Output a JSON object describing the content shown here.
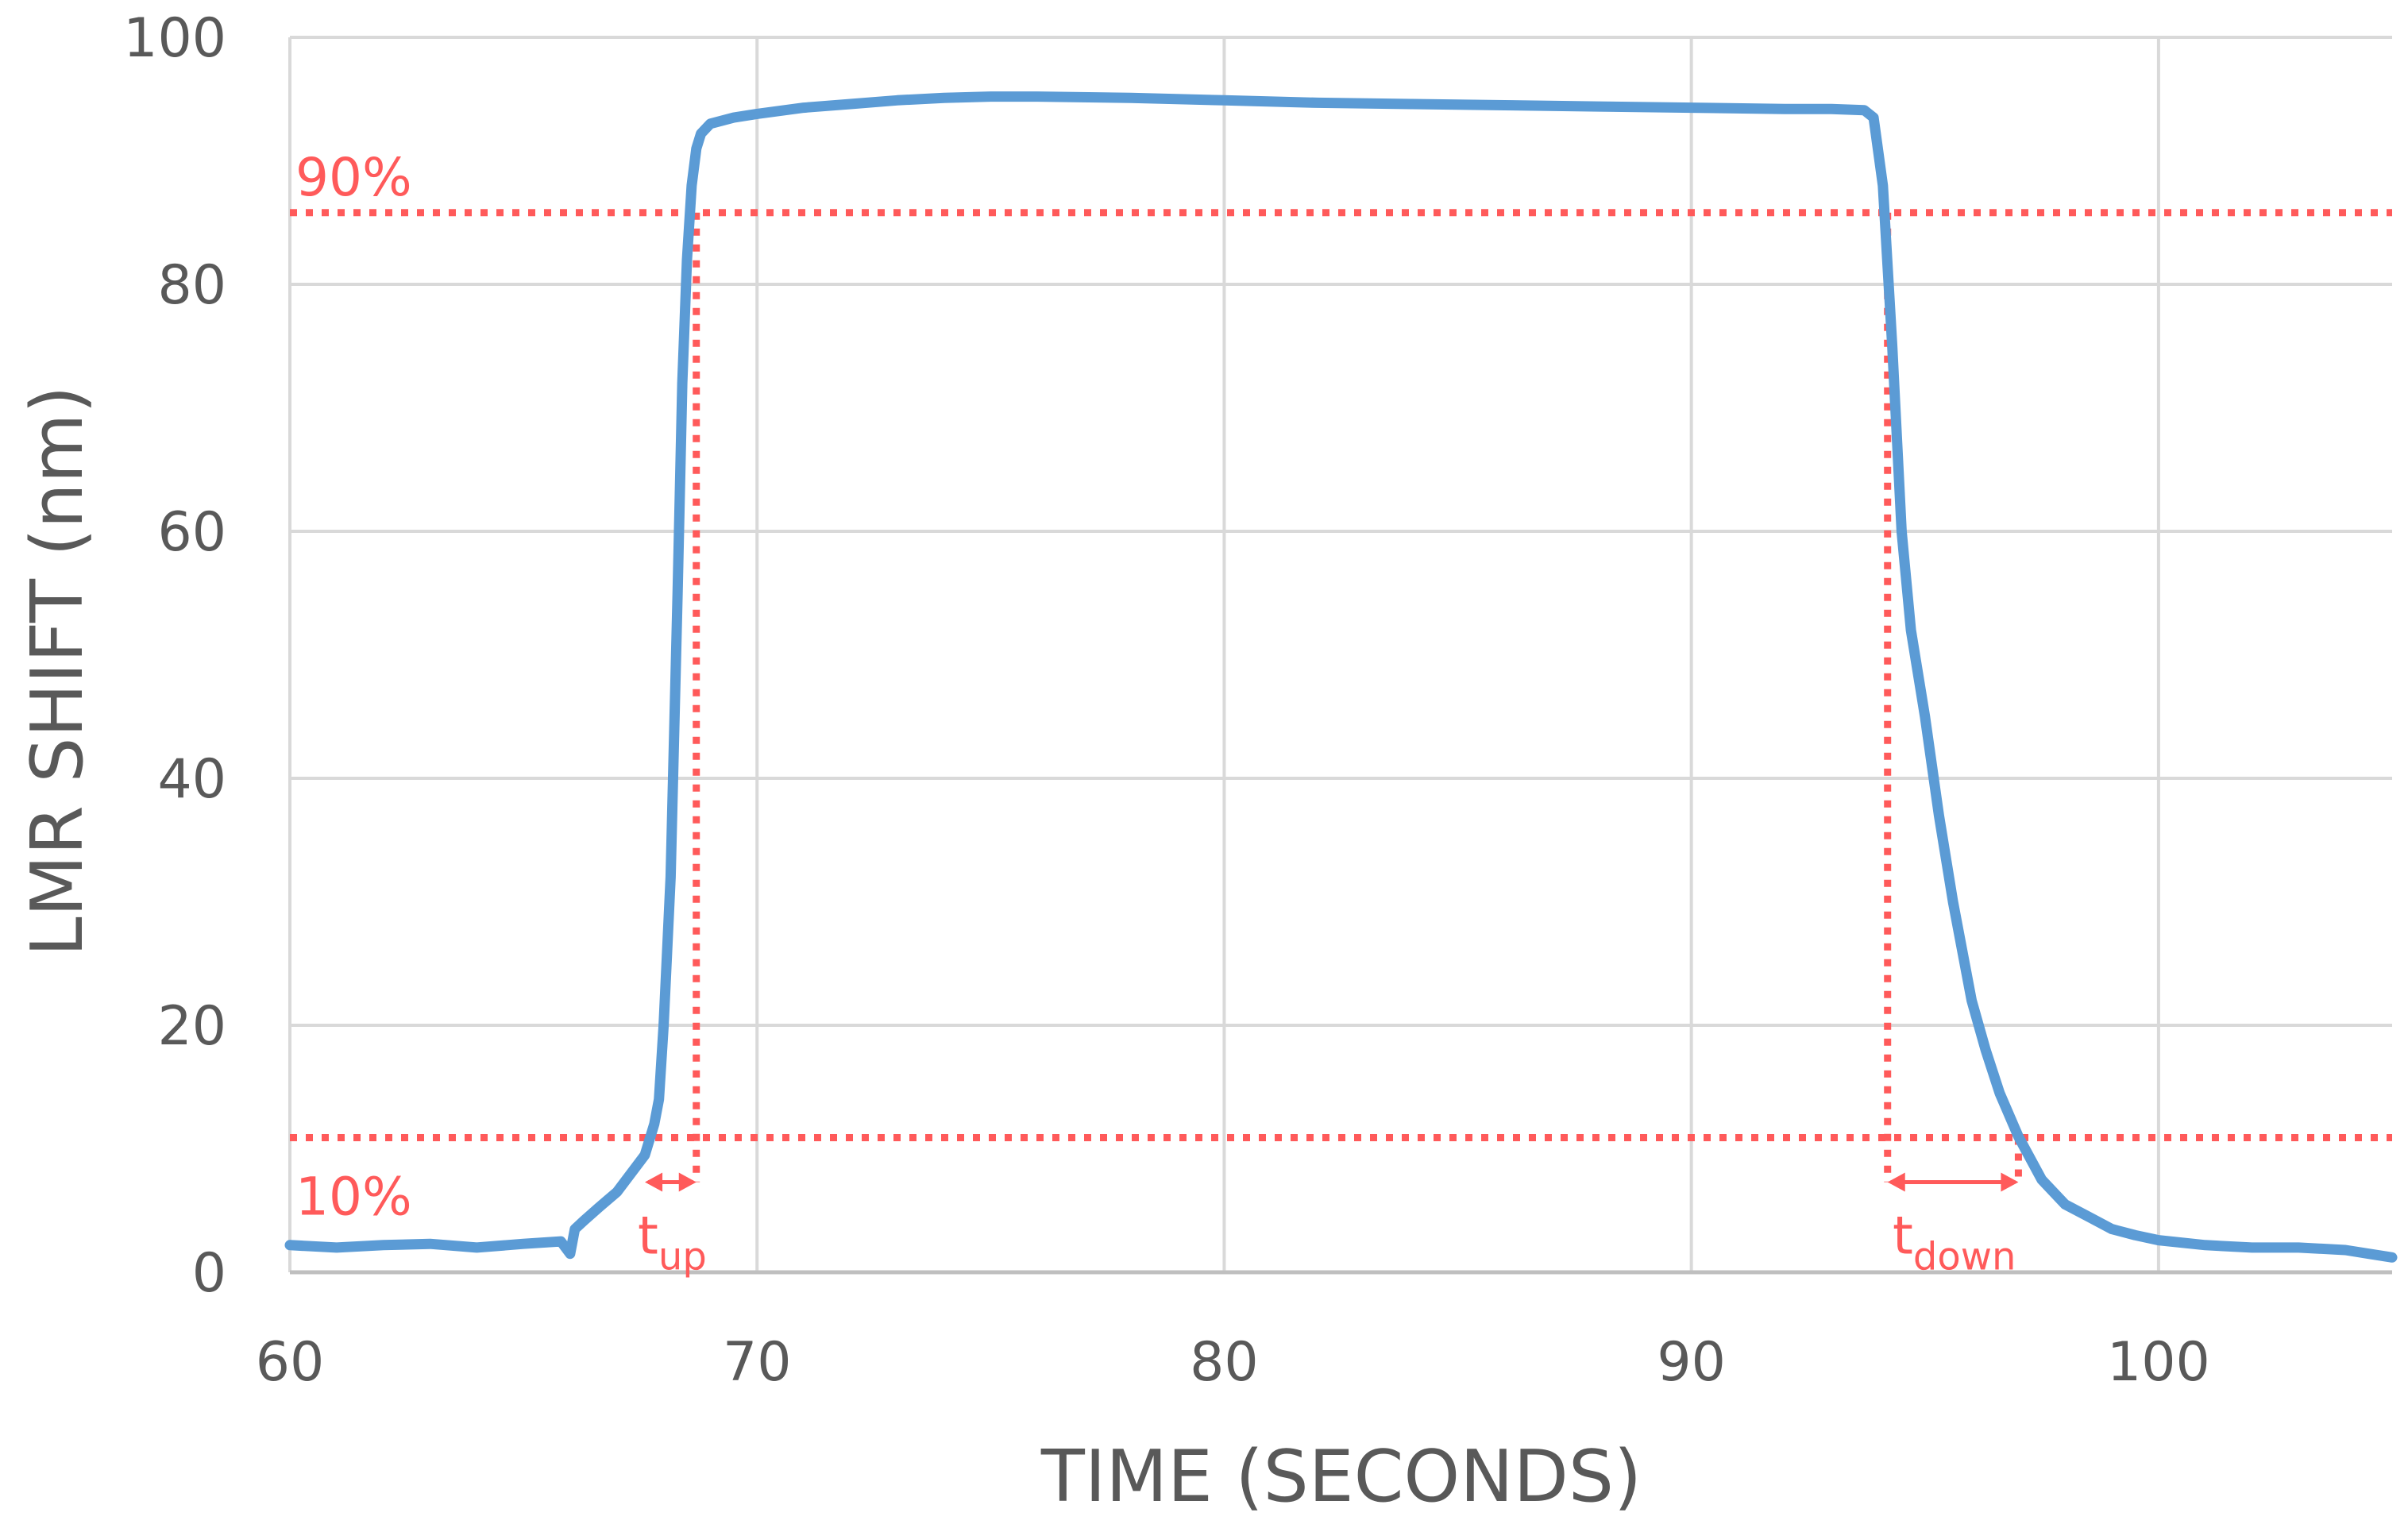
{
  "chart_data": {
    "type": "line",
    "xlabel": "TIME (SECONDS)",
    "ylabel": "LMR SHIFT (nm)",
    "xlim": [
      60,
      105
    ],
    "ylim": [
      0,
      100
    ],
    "xticks": [
      "60",
      "70",
      "80",
      "90",
      "100"
    ],
    "yticks": [
      "0",
      "20",
      "40",
      "60",
      "80",
      "100"
    ],
    "grid": true,
    "series": [
      {
        "color": "#5b9bd5",
        "x": [
          60,
          61,
          62,
          63,
          64,
          65,
          65.8,
          66.0,
          66.1,
          66.3,
          66.6,
          67.0,
          67.4,
          67.6,
          67.8,
          67.9,
          68.0,
          68.15,
          68.3,
          68.4,
          68.5,
          68.6,
          68.7,
          68.8,
          69.0,
          69.5,
          70,
          71,
          72,
          73,
          74,
          75,
          76,
          78,
          80,
          82,
          84,
          86,
          88,
          90,
          92,
          93,
          93.7,
          93.9,
          94.1,
          94.3,
          94.5,
          94.7,
          95.0,
          95.3,
          95.6,
          96.0,
          96.3,
          96.6,
          97.0,
          97.5,
          98.0,
          98.5,
          99.0,
          99.5,
          100,
          101,
          102,
          103,
          104,
          104.5,
          105
        ],
        "y": [
          2.2,
          2.0,
          2.2,
          2.3,
          2.0,
          2.3,
          2.5,
          1.5,
          3.5,
          4.2,
          5.2,
          6.5,
          8.5,
          9.5,
          12.0,
          14.0,
          20.0,
          32.0,
          55.0,
          72.0,
          82.0,
          88.0,
          91.0,
          92.2,
          93.0,
          93.5,
          93.8,
          94.3,
          94.6,
          94.9,
          95.1,
          95.2,
          95.2,
          95.1,
          94.9,
          94.7,
          94.6,
          94.5,
          94.4,
          94.3,
          94.2,
          94.2,
          94.1,
          93.5,
          88.0,
          75.0,
          60.0,
          52.0,
          45.0,
          37.0,
          30.0,
          22.0,
          18.0,
          14.5,
          11.0,
          7.5,
          5.5,
          4.5,
          3.5,
          3.0,
          2.6,
          2.2,
          2.0,
          2.0,
          1.8,
          1.5,
          1.2
        ]
      }
    ],
    "annotations": {
      "color": "#ff5a5a",
      "threshold_high": {
        "label": "90%",
        "y": 85.8
      },
      "threshold_low": {
        "label": "10%",
        "y": 10.9
      },
      "t_up": {
        "base": "t",
        "sub": "up",
        "x_start": 67.6,
        "x_end": 68.7
      },
      "t_down": {
        "base": "t",
        "sub": "down",
        "x_start": 94.2,
        "x_end": 97.0
      }
    }
  }
}
